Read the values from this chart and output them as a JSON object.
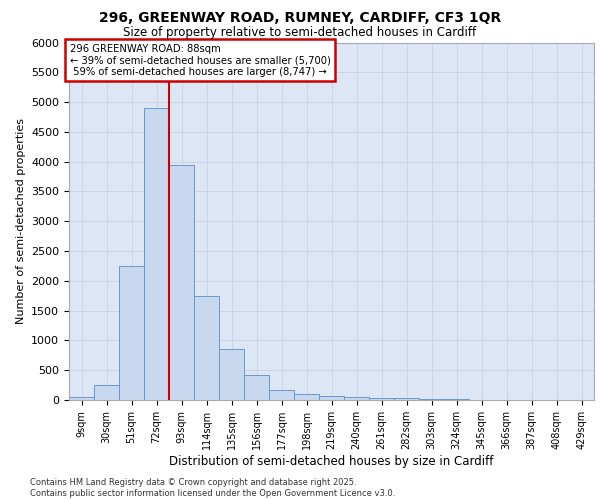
{
  "title_line1": "296, GREENWAY ROAD, RUMNEY, CARDIFF, CF3 1QR",
  "title_line2": "Size of property relative to semi-detached houses in Cardiff",
  "xlabel": "Distribution of semi-detached houses by size in Cardiff",
  "ylabel": "Number of semi-detached properties",
  "footer_line1": "Contains HM Land Registry data © Crown copyright and database right 2025.",
  "footer_line2": "Contains public sector information licensed under the Open Government Licence v3.0.",
  "property_label": "296 GREENWAY ROAD: 88sqm",
  "pct_smaller": 39,
  "pct_larger": 59,
  "count_smaller": 5700,
  "count_larger": 8747,
  "categories": [
    "9sqm",
    "30sqm",
    "51sqm",
    "72sqm",
    "93sqm",
    "114sqm",
    "135sqm",
    "156sqm",
    "177sqm",
    "198sqm",
    "219sqm",
    "240sqm",
    "261sqm",
    "282sqm",
    "303sqm",
    "324sqm",
    "345sqm",
    "366sqm",
    "387sqm",
    "408sqm",
    "429sqm"
  ],
  "bin_starts": [
    9,
    30,
    51,
    72,
    93,
    114,
    135,
    156,
    177,
    198,
    219,
    240,
    261,
    282,
    303,
    324,
    345,
    366,
    387,
    408,
    429
  ],
  "bin_width": 21,
  "values": [
    50,
    250,
    2250,
    4900,
    3950,
    1750,
    850,
    420,
    160,
    100,
    75,
    55,
    40,
    28,
    18,
    12,
    8,
    5,
    3,
    2,
    1
  ],
  "bar_color": "#c8d8ee",
  "bar_edge_color": "#6699cc",
  "vline_color": "#cc0000",
  "vline_x": 93,
  "grid_color": "#c8d4e8",
  "background_color": "#dde6f4",
  "ylim": [
    0,
    6000
  ],
  "yticks": [
    0,
    500,
    1000,
    1500,
    2000,
    2500,
    3000,
    3500,
    4000,
    4500,
    5000,
    5500,
    6000
  ]
}
